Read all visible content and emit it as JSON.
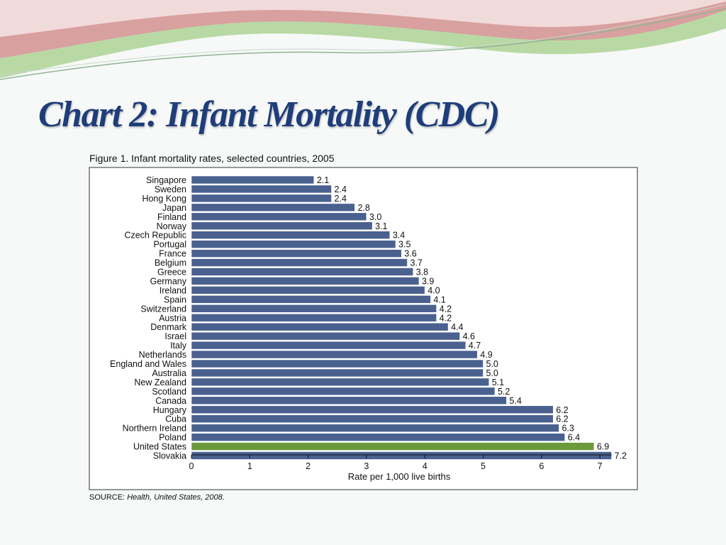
{
  "slide": {
    "title": "Chart 2: Infant Mortality (CDC)"
  },
  "source": {
    "label": "SOURCE:",
    "title": "Health, United States, 2008."
  },
  "chart_data": {
    "type": "bar",
    "orientation": "horizontal",
    "title": "Figure 1. Infant mortality rates, selected countries, 2005",
    "xlabel": "Rate per 1,000 live births",
    "ylabel": "",
    "xlim": [
      0,
      7.2
    ],
    "xticks": [
      0,
      1,
      2,
      3,
      4,
      5,
      6,
      7
    ],
    "categories": [
      "Singapore",
      "Sweden",
      "Hong Kong",
      "Japan",
      "Finland",
      "Norway",
      "Czech Republic",
      "Portugal",
      "France",
      "Belgium",
      "Greece",
      "Germany",
      "Ireland",
      "Spain",
      "Switzerland",
      "Austria",
      "Denmark",
      "Israel",
      "Italy",
      "Netherlands",
      "England and Wales",
      "Australia",
      "New Zealand",
      "Scotland",
      "Canada",
      "Hungary",
      "Cuba",
      "Northern Ireland",
      "Poland",
      "United States",
      "Slovakia"
    ],
    "values": [
      2.1,
      2.4,
      2.4,
      2.8,
      3.0,
      3.1,
      3.4,
      3.5,
      3.6,
      3.7,
      3.8,
      3.9,
      4.0,
      4.1,
      4.2,
      4.2,
      4.4,
      4.6,
      4.7,
      4.9,
      5.0,
      5.0,
      5.1,
      5.2,
      5.4,
      6.2,
      6.2,
      6.3,
      6.4,
      6.9,
      7.2
    ],
    "value_labels": [
      "2.1",
      "2.4",
      "2.4",
      "2.8",
      "3.0",
      "3.1",
      "3.4",
      "3.5",
      "3.6",
      "3.7",
      "3.8",
      "3.9",
      "4.0",
      "4.1",
      "4.2",
      "4.2",
      "4.4",
      "4.6",
      "4.7",
      "4.9",
      "5.0",
      "5.0",
      "5.1",
      "5.2",
      "5.4",
      "6.2",
      "6.2",
      "6.3",
      "6.4",
      "6.9",
      "7.2"
    ],
    "colors": {
      "default": "#4a6190",
      "highlight": "#6b9a3a"
    },
    "highlight_category": "United States",
    "grid": false,
    "legend": "none"
  }
}
